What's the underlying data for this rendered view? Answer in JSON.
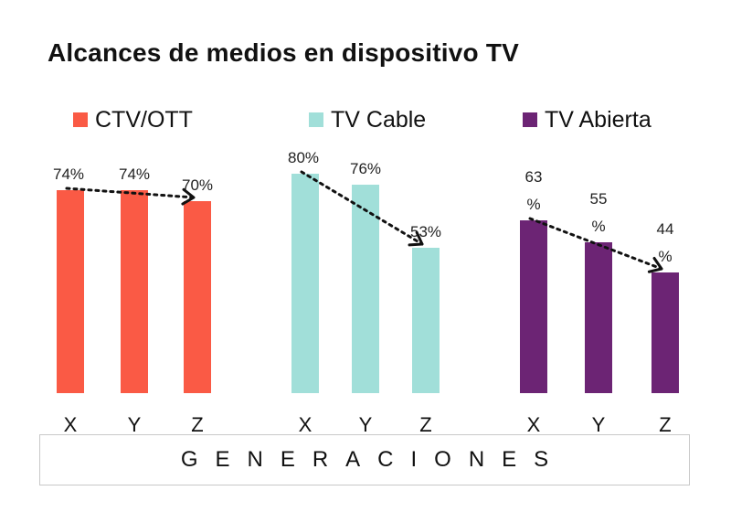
{
  "title": "Alcances de medios en dispositivo TV",
  "xlabel": "GENERACIONES",
  "chart_data": {
    "type": "bar",
    "title": "Alcances de medios en dispositivo TV",
    "xlabel": "GENERACIONES",
    "ylabel": "",
    "unit": "%",
    "ylim": [
      0,
      100
    ],
    "grid": false,
    "legend_position": "top",
    "categories": [
      "X",
      "Y",
      "Z"
    ],
    "series": [
      {
        "name": "CTV/OTT",
        "color": "#FA5A45",
        "values": [
          74,
          74,
          70
        ],
        "labels": [
          "74%",
          "74%",
          "70%"
        ]
      },
      {
        "name": "TV Cable",
        "color": "#A1DFD9",
        "values": [
          80,
          76,
          53
        ],
        "labels": [
          "80%",
          "76%",
          "53%"
        ]
      },
      {
        "name": "TV Abierta",
        "color": "#6C2474",
        "values": [
          63,
          55,
          44
        ],
        "labels": [
          "63 %",
          "55 %",
          "44 %"
        ]
      }
    ],
    "trend_arrows": true
  }
}
